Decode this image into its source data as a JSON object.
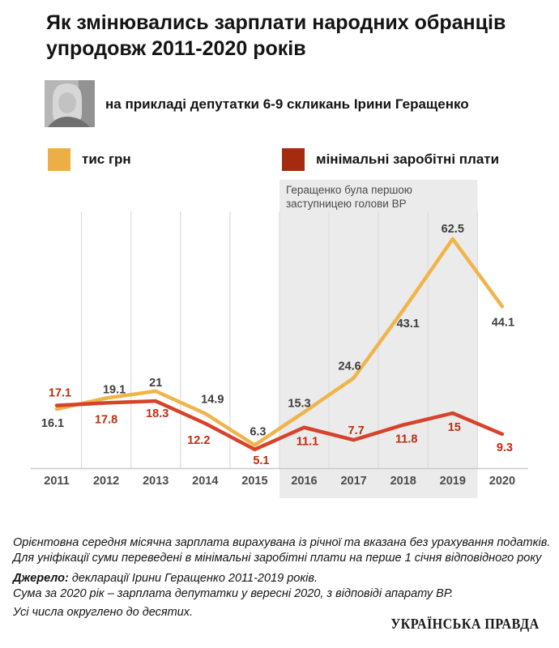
{
  "header": {
    "title_line1": "Як змінювались зарплати народних обранців",
    "title_line2": "упродовж 2011-2020 років",
    "subtitle": "на прикладі депутатки 6-9 скликань Ірини Геращенко"
  },
  "legend": [
    {
      "label": "тис грн",
      "color": "#ecae45"
    },
    {
      "label": "мінімальні заробітні плати",
      "color": "#a42b10"
    }
  ],
  "chart_data": {
    "type": "line",
    "x": [
      2011,
      2012,
      2013,
      2014,
      2015,
      2016,
      2017,
      2018,
      2019,
      2020
    ],
    "series": [
      {
        "name": "тис грн",
        "color": "#f0b44c",
        "label_color": "#3d3d3d",
        "values": [
          16.1,
          19.1,
          21,
          14.9,
          6.3,
          15.3,
          24.6,
          43.1,
          62.5,
          44.1
        ],
        "label_offsets": [
          [
            -5,
            17
          ],
          [
            10,
            -11
          ],
          [
            0,
            -11
          ],
          [
            9,
            -18
          ],
          [
            4,
            -17
          ],
          [
            -6,
            -11
          ],
          [
            -5,
            -15
          ],
          [
            6,
            16
          ],
          [
            0,
            -13
          ],
          [
            1,
            19
          ]
        ]
      },
      {
        "name": "мінімальні заробітні плати",
        "color": "#d6432a",
        "label_color": "#bf2c0e",
        "values": [
          17.1,
          17.8,
          18.3,
          12.2,
          5.1,
          11.1,
          7.7,
          11.8,
          15,
          9.3
        ],
        "label_offsets": [
          [
            4,
            -16
          ],
          [
            0,
            20
          ],
          [
            2,
            15
          ],
          [
            -8,
            20
          ],
          [
            8,
            13
          ],
          [
            4,
            17
          ],
          [
            3,
            -12
          ],
          [
            4,
            17
          ],
          [
            2,
            17
          ],
          [
            3,
            16
          ]
        ]
      }
    ],
    "ylim": [
      0,
      80
    ],
    "grid": "vertical-between-categories",
    "legend_position": "top",
    "highlight_region": {
      "from": 2016,
      "to": 2019,
      "color": "#ebebeb",
      "annotation": "Геращенко була першою заступницею голови ВР",
      "annotation_lines": [
        "Геращенко була першою",
        "заступницею голови ВР"
      ]
    }
  },
  "footer": {
    "footnote_line1": "Орієнтовна середня місячна зарплата вирахувана із річної та вказана без урахування податків.",
    "footnote_line2": "Для уніфікації суми переведені в мінімальні заробітні плати на перше 1 січня відповідного року",
    "source_label": "Джерело:",
    "source_text": " декларації Ірини Геращенко 2011-2019 років.",
    "source_line2": "Сума за 2020 рік – зарплата депутатки у вересні 2020, з відповіді апарату ВР.",
    "rounding_note": "Усі числа округлено до десятих.",
    "brand": "УКРАЇНСЬКА ПРАВДА"
  }
}
